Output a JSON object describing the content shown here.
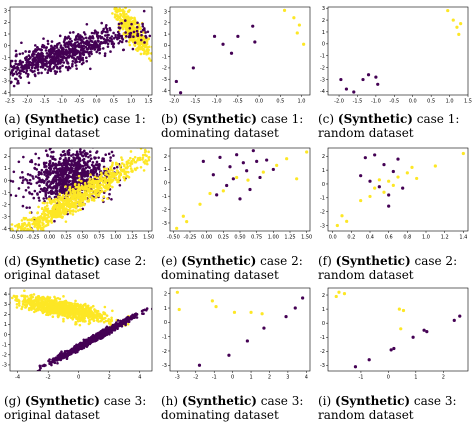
{
  "colors": {
    "class0": "#440154",
    "class1": "#fde725",
    "axis": "#000000"
  },
  "captions": [
    {
      "label": "(a)",
      "bold": "(Synthetic)",
      "rest": " case 1:",
      "line2": "original dataset"
    },
    {
      "label": "(b)",
      "bold": "(Synthetic)",
      "rest": " case 1:",
      "line2": "dominating dataset"
    },
    {
      "label": "(c)",
      "bold": "(Synthetic)",
      "rest": " case 1:",
      "line2": "random dataset"
    },
    {
      "label": "(d)",
      "bold": "(Synthetic)",
      "rest": " case 2:",
      "line2": "original dataset"
    },
    {
      "label": "(e)",
      "bold": "(Synthetic)",
      "rest": " case 2:",
      "line2": "dominating dataset"
    },
    {
      "label": "(f)",
      "bold": "(Synthetic)",
      "rest": " case 2:",
      "line2": "random dataset"
    },
    {
      "label": "(g)",
      "bold": "(Synthetic)",
      "rest": " case 3:",
      "line2": "original dataset"
    },
    {
      "label": "(h)",
      "bold": "(Synthetic)",
      "rest": " case 3:",
      "line2": "dominating dataset"
    },
    {
      "label": "(i)",
      "bold": "(Synthetic)",
      "rest": " case 3:",
      "line2": "random dataset"
    }
  ],
  "chart_data": [
    {
      "type": "scatter",
      "id": "a",
      "xlim": [
        -2.5,
        1.6
      ],
      "ylim": [
        -4.2,
        3.3
      ],
      "xticks": [
        "-2.5",
        "-2.0",
        "-1.5",
        "-1.0",
        "-0.5",
        "0.0",
        "0.5",
        "1.0",
        "1.5"
      ],
      "xtick_values": [
        -2.5,
        -2.0,
        -1.5,
        -1.0,
        -0.5,
        0.0,
        0.5,
        1.0,
        1.5
      ],
      "yticks": [
        "-4",
        "-3",
        "-2",
        "-1",
        "0",
        "1",
        "2",
        "3"
      ],
      "ytick_values": [
        -4,
        -3,
        -2,
        -1,
        0,
        1,
        2,
        3
      ],
      "clouds": [
        {
          "class": 1,
          "center": [
            1.05,
            1.3
          ],
          "sd_major": 1.0,
          "sd_minor": 0.13,
          "angle_deg": -78,
          "n": 500
        },
        {
          "class": 0,
          "center": [
            -1.0,
            -0.7
          ],
          "sd_major": 1.5,
          "sd_minor": 0.45,
          "angle_deg": 47,
          "n": 900
        }
      ],
      "series": []
    },
    {
      "type": "scatter",
      "id": "b",
      "xlim": [
        -2.1,
        1.2
      ],
      "ylim": [
        -4.4,
        3.4
      ],
      "xticks": [
        "-2.0",
        "-1.5",
        "-1.0",
        "-0.5",
        "0.0",
        "0.5",
        "1.0"
      ],
      "xtick_values": [
        -2.0,
        -1.5,
        -1.0,
        -0.5,
        0.0,
        0.5,
        1.0
      ],
      "yticks": [
        "-4",
        "-3",
        "-2",
        "-1",
        "0",
        "1",
        "2",
        "3"
      ],
      "ytick_values": [
        -4,
        -3,
        -2,
        -1,
        0,
        1,
        2,
        3
      ],
      "series": [
        {
          "class": 1,
          "points": [
            [
              0.6,
              3.1
            ],
            [
              0.82,
              2.45
            ],
            [
              0.95,
              1.8
            ],
            [
              0.9,
              1.1
            ],
            [
              1.05,
              0.1
            ]
          ]
        },
        {
          "class": 0,
          "points": [
            [
              -0.15,
              1.7
            ],
            [
              -0.1,
              0.3
            ],
            [
              -0.5,
              0.8
            ],
            [
              -0.85,
              0.1
            ],
            [
              -1.05,
              0.8
            ],
            [
              -0.65,
              -0.7
            ],
            [
              -1.55,
              -2.0
            ],
            [
              -1.95,
              -3.2
            ],
            [
              -1.85,
              -4.2
            ]
          ]
        }
      ]
    },
    {
      "type": "scatter",
      "id": "c",
      "xlim": [
        -2.3,
        1.5
      ],
      "ylim": [
        -4.3,
        3.1
      ],
      "xticks": [
        "-2.0",
        "-1.5",
        "-1.0",
        "-0.5",
        "0.0",
        "0.5",
        "1.0",
        "1.5"
      ],
      "xtick_values": [
        -2.0,
        -1.5,
        -1.0,
        -0.5,
        0.0,
        0.5,
        1.0,
        1.5
      ],
      "yticks": [
        "-4",
        "-3",
        "-2",
        "-1",
        "0",
        "1",
        "2",
        "3"
      ],
      "ytick_values": [
        -4,
        -3,
        -2,
        -1,
        0,
        1,
        2,
        3
      ],
      "series": [
        {
          "class": 1,
          "points": [
            [
              0.95,
              2.8
            ],
            [
              1.1,
              2.0
            ],
            [
              1.2,
              1.4
            ],
            [
              1.3,
              1.7
            ],
            [
              1.25,
              0.8
            ]
          ]
        },
        {
          "class": 0,
          "points": [
            [
              -1.95,
              -3.0
            ],
            [
              -1.8,
              -3.8
            ],
            [
              -1.6,
              -4.05
            ],
            [
              -1.35,
              -3.0
            ],
            [
              -1.2,
              -2.6
            ],
            [
              -1.0,
              -2.8
            ],
            [
              -0.95,
              -3.4
            ]
          ]
        }
      ]
    },
    {
      "type": "scatter",
      "id": "d",
      "xlim": [
        -0.6,
        1.55
      ],
      "ylim": [
        -4.2,
        2.7
      ],
      "xticks": [
        "-0.50",
        "-0.25",
        "0.00",
        "0.25",
        "0.50",
        "0.75",
        "1.00",
        "1.25",
        "1.50"
      ],
      "xtick_values": [
        -0.5,
        -0.25,
        0.0,
        0.25,
        0.5,
        0.75,
        1.0,
        1.25,
        1.5
      ],
      "yticks": [
        "-4",
        "-3",
        "-2",
        "-1",
        "0",
        "1",
        "2"
      ],
      "ytick_values": [
        -4,
        -3,
        -2,
        -1,
        0,
        1,
        2
      ],
      "clouds": [
        {
          "class": 0,
          "center": [
            0.3,
            0.4
          ],
          "sd_major": 0.3,
          "sd_minor": 0.2,
          "angle_deg": 10,
          "yscale": 5.2,
          "n": 900
        },
        {
          "class": 1,
          "center": [
            0.4,
            -1.5
          ],
          "sd_major": 0.8,
          "sd_minor": 0.09,
          "angle_deg": 33,
          "yscale": 5.2,
          "n": 900
        }
      ],
      "series": []
    },
    {
      "type": "scatter",
      "id": "e",
      "xlim": [
        -0.55,
        1.55
      ],
      "ylim": [
        -3.6,
        2.6
      ],
      "xticks": [
        "-0.50",
        "-0.25",
        "0.00",
        "0.25",
        "0.50",
        "0.75",
        "1.00",
        "1.25",
        "1.50"
      ],
      "xtick_values": [
        -0.5,
        -0.25,
        0.0,
        0.25,
        0.5,
        0.75,
        1.0,
        1.25,
        1.5
      ],
      "yticks": [
        "-3",
        "-2",
        "-1",
        "0",
        "1",
        "2"
      ],
      "ytick_values": [
        -3,
        -2,
        -1,
        0,
        1,
        2
      ],
      "series": [
        {
          "class": 0,
          "points": [
            [
              -0.05,
              1.6
            ],
            [
              0.1,
              0.6
            ],
            [
              0.2,
              1.9
            ],
            [
              0.35,
              1.2
            ],
            [
              0.4,
              0.3
            ],
            [
              0.45,
              2.1
            ],
            [
              0.55,
              1.5
            ],
            [
              0.6,
              0.9
            ],
            [
              0.65,
              -0.5
            ],
            [
              0.7,
              2.4
            ],
            [
              0.75,
              1.6
            ],
            [
              0.8,
              0.4
            ],
            [
              0.9,
              1.7
            ],
            [
              1.0,
              1.0
            ],
            [
              0.3,
              -0.2
            ],
            [
              0.5,
              -1.2
            ],
            [
              0.15,
              -0.9
            ]
          ]
        },
        {
          "class": 1,
          "points": [
            [
              -0.45,
              -3.4
            ],
            [
              -0.35,
              -2.5
            ],
            [
              -0.3,
              -2.9
            ],
            [
              -0.1,
              -1.6
            ],
            [
              0.05,
              -0.8
            ],
            [
              0.25,
              -0.6
            ],
            [
              0.45,
              0.4
            ],
            [
              0.62,
              0.2
            ],
            [
              0.85,
              0.8
            ],
            [
              1.05,
              1.3
            ],
            [
              1.2,
              1.8
            ],
            [
              1.35,
              0.3
            ],
            [
              1.5,
              2.3
            ]
          ]
        }
      ]
    },
    {
      "type": "scatter",
      "id": "f",
      "xlim": [
        -0.05,
        1.45
      ],
      "ylim": [
        -3.4,
        2.6
      ],
      "xticks": [
        "0.0",
        "0.2",
        "0.4",
        "0.6",
        "0.8",
        "1.0",
        "1.2",
        "1.4"
      ],
      "xtick_values": [
        0.0,
        0.2,
        0.4,
        0.6,
        0.8,
        1.0,
        1.2,
        1.4
      ],
      "yticks": [
        "-3",
        "-2",
        "-1",
        "0",
        "1",
        "2"
      ],
      "ytick_values": [
        -3,
        -2,
        -1,
        0,
        1,
        2
      ],
      "series": [
        {
          "class": 1,
          "points": [
            [
              0.05,
              -3.0
            ],
            [
              0.1,
              -2.3
            ],
            [
              0.15,
              -2.7
            ],
            [
              0.3,
              -1.2
            ],
            [
              0.4,
              -0.9
            ],
            [
              0.45,
              -0.3
            ],
            [
              0.55,
              -0.6
            ],
            [
              0.6,
              0.2
            ],
            [
              0.65,
              -0.1
            ],
            [
              0.7,
              0.5
            ],
            [
              0.8,
              0.8
            ],
            [
              0.85,
              1.2
            ],
            [
              0.9,
              0.4
            ],
            [
              1.1,
              1.3
            ],
            [
              1.4,
              2.2
            ],
            [
              0.5,
              0.3
            ]
          ]
        },
        {
          "class": 0,
          "points": [
            [
              0.3,
              0.6
            ],
            [
              0.35,
              1.9
            ],
            [
              0.45,
              2.1
            ],
            [
              0.5,
              -0.2
            ],
            [
              0.55,
              1.4
            ],
            [
              0.6,
              -0.8
            ],
            [
              0.65,
              0.9
            ],
            [
              0.7,
              1.8
            ],
            [
              0.75,
              -0.3
            ],
            [
              0.6,
              -1.6
            ],
            [
              0.4,
              0.2
            ]
          ]
        }
      ]
    },
    {
      "type": "scatter",
      "id": "g",
      "xlim": [
        -4.5,
        4.8
      ],
      "ylim": [
        -3.6,
        4.6
      ],
      "xticks": [
        "-4",
        "-2",
        "0",
        "2",
        "4"
      ],
      "xtick_values": [
        -4,
        -2,
        0,
        2,
        4
      ],
      "yticks": [
        "-3",
        "-2",
        "-1",
        "0",
        "1",
        "2",
        "3",
        "4"
      ],
      "ytick_values": [
        -3,
        -2,
        -1,
        0,
        1,
        2,
        3,
        4
      ],
      "clouds": [
        {
          "class": 1,
          "center": [
            -1.0,
            2.5
          ],
          "sd_major": 1.4,
          "sd_minor": 0.38,
          "angle_deg": -18,
          "n": 1000
        },
        {
          "class": 0,
          "center": [
            1.0,
            -0.4
          ],
          "sd_major": 1.8,
          "sd_minor": 0.12,
          "angle_deg": 40,
          "n": 900
        }
      ],
      "series": []
    },
    {
      "type": "scatter",
      "id": "h",
      "xlim": [
        -3.4,
        4.2
      ],
      "ylim": [
        -3.4,
        2.4
      ],
      "xticks": [
        "-3",
        "-2",
        "-1",
        "0",
        "1",
        "2",
        "3",
        "4"
      ],
      "xtick_values": [
        -3,
        -2,
        -1,
        0,
        1,
        2,
        3,
        4
      ],
      "yticks": [
        "-3",
        "-2",
        "-1",
        "0",
        "1",
        "2"
      ],
      "ytick_values": [
        -3,
        -2,
        -1,
        0,
        1,
        2
      ],
      "series": [
        {
          "class": 1,
          "points": [
            [
              -3.0,
              2.1
            ],
            [
              -1.1,
              1.5
            ],
            [
              -0.9,
              1.1
            ],
            [
              -2.9,
              0.9
            ],
            [
              0.1,
              0.7
            ],
            [
              1.0,
              0.7
            ],
            [
              1.6,
              0.6
            ]
          ]
        },
        {
          "class": 0,
          "points": [
            [
              -1.8,
              -3.0
            ],
            [
              -0.2,
              -2.3
            ],
            [
              0.8,
              -1.3
            ],
            [
              1.7,
              -0.4
            ],
            [
              2.9,
              0.4
            ],
            [
              3.4,
              1.0
            ],
            [
              3.8,
              1.7
            ]
          ]
        }
      ]
    },
    {
      "type": "scatter",
      "id": "i",
      "xlim": [
        -2.2,
        2.9
      ],
      "ylim": [
        -3.4,
        2.5
      ],
      "xticks": [
        "-1",
        "0",
        "1",
        "2"
      ],
      "xtick_values": [
        -1,
        0,
        1,
        2
      ],
      "yticks": [
        "-3",
        "-2",
        "-1",
        "0",
        "1",
        "2"
      ],
      "ytick_values": [
        -3,
        -2,
        -1,
        0,
        1,
        2
      ],
      "series": [
        {
          "class": 1,
          "points": [
            [
              -1.8,
              2.2
            ],
            [
              -1.6,
              2.1
            ],
            [
              -1.9,
              1.9
            ],
            [
              0.4,
              1.0
            ],
            [
              0.55,
              0.9
            ],
            [
              0.45,
              -0.4
            ]
          ]
        },
        {
          "class": 0,
          "points": [
            [
              -1.2,
              -3.1
            ],
            [
              -0.7,
              -2.6
            ],
            [
              0.1,
              -1.9
            ],
            [
              0.2,
              -1.8
            ],
            [
              0.9,
              -1.0
            ],
            [
              1.3,
              -0.5
            ],
            [
              1.4,
              -0.6
            ],
            [
              2.4,
              0.2
            ],
            [
              2.6,
              0.5
            ]
          ]
        }
      ]
    }
  ]
}
